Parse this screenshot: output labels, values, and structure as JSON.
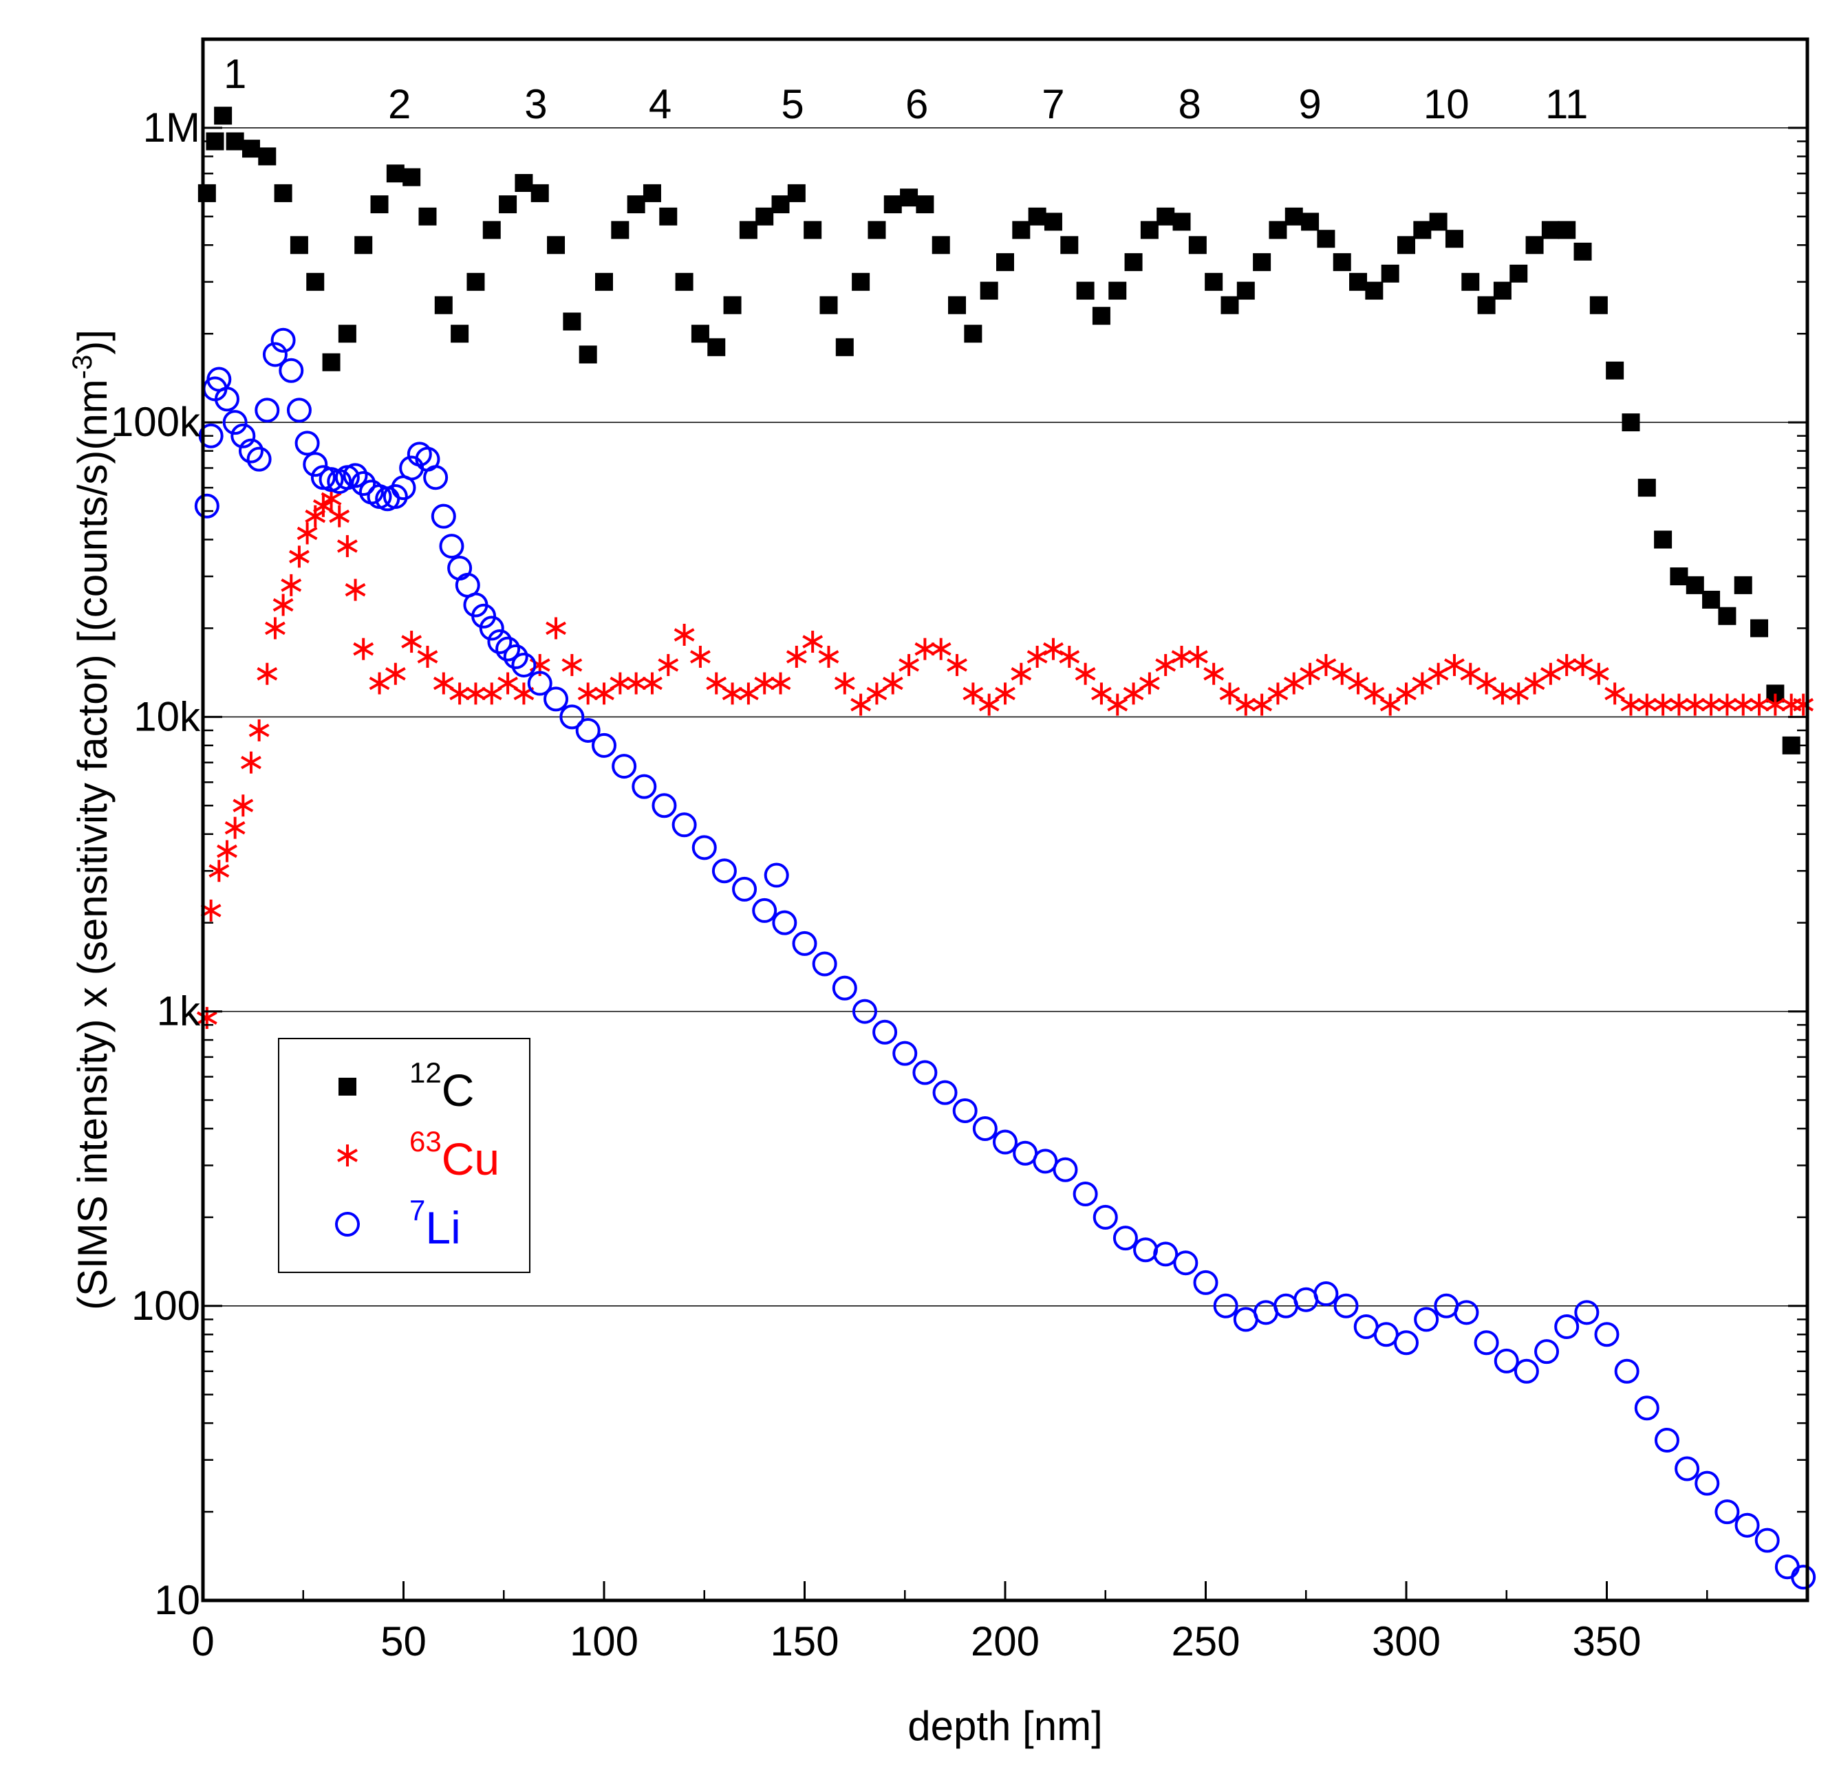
{
  "chart_data": {
    "type": "scatter",
    "xlabel": "depth [nm]",
    "ylabel": "(SIMS intensity) x (sensitivity factor) [(counts/s)(nm",
    "ylabel_sup": "-3",
    "ylabel_end": ")]",
    "x_range": [
      0,
      400
    ],
    "y_range": [
      10,
      2000000
    ],
    "y_scale": "log",
    "grid": "horizontal major gridlines",
    "x_ticks": [
      0,
      50,
      100,
      150,
      200,
      250,
      300,
      350
    ],
    "x_tick_labels": [
      "0",
      "50",
      "100",
      "150",
      "200",
      "250",
      "300",
      "350"
    ],
    "y_ticks": [
      10,
      100,
      1000,
      10000,
      100000,
      1000000
    ],
    "y_tick_labels": [
      "10",
      "100",
      "1k",
      "10k",
      "100k",
      "1M"
    ],
    "peak_labels": [
      {
        "text": "1",
        "x": 8
      },
      {
        "text": "2",
        "x": 49
      },
      {
        "text": "3",
        "x": 83
      },
      {
        "text": "4",
        "x": 114
      },
      {
        "text": "5",
        "x": 147
      },
      {
        "text": "6",
        "x": 178
      },
      {
        "text": "7",
        "x": 212
      },
      {
        "text": "8",
        "x": 246
      },
      {
        "text": "9",
        "x": 276
      },
      {
        "text": "10",
        "x": 310
      },
      {
        "text": "11",
        "x": 340
      }
    ],
    "legend_position": "lower-left",
    "legend": [
      {
        "sup": "12",
        "label": "C",
        "color": "#000000",
        "marker": "filled-square"
      },
      {
        "sup": "63",
        "label": "Cu",
        "color": "#ff0000",
        "marker": "asterisk"
      },
      {
        "sup": "7",
        "label": "Li",
        "color": "#0000ff",
        "marker": "open-circle"
      }
    ],
    "series": [
      {
        "name": "12C",
        "color": "#000000",
        "marker": "filled-square",
        "x": [
          1,
          3,
          5,
          8,
          12,
          16,
          20,
          24,
          28,
          32,
          36,
          40,
          44,
          48,
          52,
          56,
          60,
          64,
          68,
          72,
          76,
          80,
          84,
          88,
          92,
          96,
          100,
          104,
          108,
          112,
          116,
          120,
          124,
          128,
          132,
          136,
          140,
          144,
          148,
          152,
          156,
          160,
          164,
          168,
          172,
          176,
          180,
          184,
          188,
          192,
          196,
          200,
          204,
          208,
          212,
          216,
          220,
          224,
          228,
          232,
          236,
          240,
          244,
          248,
          252,
          256,
          260,
          264,
          268,
          272,
          276,
          280,
          284,
          288,
          292,
          296,
          300,
          304,
          308,
          312,
          316,
          320,
          324,
          328,
          332,
          336,
          340,
          344,
          348,
          352,
          356,
          360,
          364,
          368,
          372,
          376,
          380,
          384,
          388,
          392,
          396
        ],
        "y": [
          600000,
          900000,
          1100000,
          900000,
          850000,
          800000,
          600000,
          400000,
          300000,
          160000,
          200000,
          400000,
          550000,
          700000,
          680000,
          500000,
          250000,
          200000,
          300000,
          450000,
          550000,
          650000,
          600000,
          400000,
          220000,
          170000,
          300000,
          450000,
          550000,
          600000,
          500000,
          300000,
          200000,
          180000,
          250000,
          450000,
          500000,
          550000,
          600000,
          450000,
          250000,
          180000,
          300000,
          450000,
          550000,
          580000,
          550000,
          400000,
          250000,
          200000,
          280000,
          350000,
          450000,
          500000,
          480000,
          400000,
          280000,
          230000,
          280000,
          350000,
          450000,
          500000,
          480000,
          400000,
          300000,
          250000,
          280000,
          350000,
          450000,
          500000,
          480000,
          420000,
          350000,
          300000,
          280000,
          320000,
          400000,
          450000,
          480000,
          420000,
          300000,
          250000,
          280000,
          320000,
          400000,
          450000,
          450000,
          380000,
          250000,
          150000,
          100000,
          60000,
          40000,
          30000,
          28000,
          25000,
          22000,
          28000,
          20000,
          12000,
          8000
        ]
      },
      {
        "name": "63Cu",
        "color": "#ff0000",
        "marker": "asterisk",
        "x": [
          1,
          2,
          4,
          6,
          8,
          10,
          12,
          14,
          16,
          18,
          20,
          22,
          24,
          26,
          28,
          30,
          32,
          34,
          36,
          38,
          40,
          44,
          48,
          52,
          56,
          60,
          64,
          68,
          72,
          76,
          80,
          84,
          88,
          92,
          96,
          100,
          104,
          108,
          112,
          116,
          120,
          124,
          128,
          132,
          136,
          140,
          144,
          148,
          152,
          156,
          160,
          164,
          168,
          172,
          176,
          180,
          184,
          188,
          192,
          196,
          200,
          204,
          208,
          212,
          216,
          220,
          224,
          228,
          232,
          236,
          240,
          244,
          248,
          252,
          256,
          260,
          264,
          268,
          272,
          276,
          280,
          284,
          288,
          292,
          296,
          300,
          304,
          308,
          312,
          316,
          320,
          324,
          328,
          332,
          336,
          340,
          344,
          348,
          352,
          356,
          360,
          364,
          368,
          372,
          376,
          380,
          384,
          388,
          392,
          396,
          399
        ],
        "y": [
          950,
          2200,
          3000,
          3500,
          4200,
          5000,
          7000,
          9000,
          14000,
          20000,
          24000,
          28000,
          35000,
          42000,
          48000,
          52000,
          55000,
          48000,
          38000,
          27000,
          17000,
          13000,
          14000,
          18000,
          16000,
          13000,
          12000,
          12000,
          12000,
          13000,
          12000,
          15000,
          20000,
          15000,
          12000,
          12000,
          13000,
          13000,
          13000,
          15000,
          19000,
          16000,
          13000,
          12000,
          12000,
          13000,
          13000,
          16000,
          18000,
          16000,
          13000,
          11000,
          12000,
          13000,
          15000,
          17000,
          17000,
          15000,
          12000,
          11000,
          12000,
          14000,
          16000,
          17000,
          16000,
          14000,
          12000,
          11000,
          12000,
          13000,
          15000,
          16000,
          16000,
          14000,
          12000,
          11000,
          11000,
          12000,
          13000,
          14000,
          15000,
          14000,
          13000,
          12000,
          11000,
          12000,
          13000,
          14000,
          15000,
          14000,
          13000,
          12000,
          12000,
          13000,
          14000,
          15000,
          15000,
          14000,
          12000,
          11000,
          11000,
          11000,
          11000,
          11000,
          11000,
          11000,
          11000,
          11000,
          11000,
          11000,
          11000
        ]
      },
      {
        "name": "7Li",
        "color": "#0000ff",
        "marker": "open-circle",
        "x": [
          1,
          2,
          3,
          4,
          6,
          8,
          10,
          12,
          14,
          16,
          18,
          20,
          22,
          24,
          26,
          28,
          30,
          32,
          34,
          36,
          38,
          40,
          42,
          44,
          46,
          48,
          50,
          52,
          54,
          56,
          58,
          60,
          62,
          64,
          66,
          68,
          70,
          72,
          74,
          76,
          78,
          80,
          84,
          88,
          92,
          96,
          100,
          105,
          110,
          115,
          120,
          125,
          130,
          135,
          140,
          143,
          145,
          150,
          155,
          160,
          165,
          170,
          175,
          180,
          185,
          190,
          195,
          200,
          205,
          210,
          215,
          220,
          225,
          230,
          235,
          240,
          245,
          250,
          255,
          260,
          265,
          270,
          275,
          280,
          285,
          290,
          295,
          300,
          305,
          310,
          315,
          320,
          325,
          330,
          335,
          340,
          345,
          350,
          355,
          360,
          365,
          370,
          375,
          380,
          385,
          390,
          395,
          399
        ],
        "y": [
          52000,
          90000,
          130000,
          140000,
          120000,
          100000,
          90000,
          80000,
          75000,
          110000,
          170000,
          190000,
          150000,
          110000,
          85000,
          72000,
          65000,
          64000,
          63000,
          65000,
          66000,
          62000,
          58000,
          56000,
          55000,
          56000,
          60000,
          70000,
          78000,
          75000,
          65000,
          48000,
          38000,
          32000,
          28000,
          24000,
          22000,
          20000,
          18000,
          17000,
          16000,
          15000,
          13000,
          11500,
          10000,
          9000,
          8000,
          6800,
          5800,
          5000,
          4300,
          3600,
          3000,
          2600,
          2200,
          2900,
          2000,
          1700,
          1450,
          1200,
          1000,
          850,
          720,
          620,
          530,
          460,
          400,
          360,
          330,
          310,
          290,
          240,
          200,
          170,
          155,
          150,
          140,
          120,
          100,
          90,
          95,
          100,
          105,
          110,
          100,
          85,
          80,
          75,
          90,
          100,
          95,
          75,
          65,
          60,
          70,
          85,
          95,
          80,
          60,
          45,
          35,
          28,
          25,
          20,
          18,
          16,
          13,
          12
        ]
      }
    ]
  }
}
